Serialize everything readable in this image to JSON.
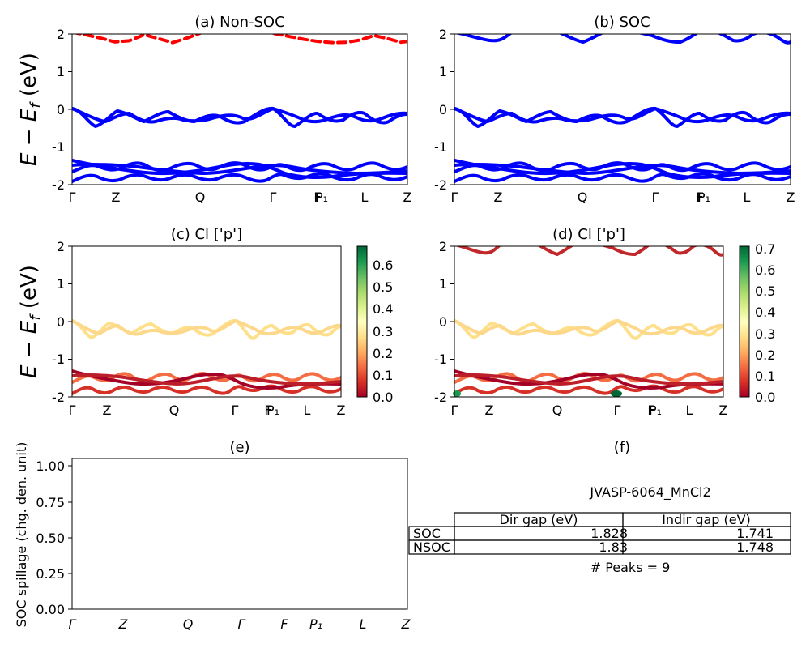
{
  "chart_data": [
    {
      "id": "a",
      "type": "line",
      "title": "(a) Non-SOC",
      "ylabel": "E − E_f (eV)",
      "ylim": [
        -2,
        2
      ],
      "yticks": [
        -2,
        -1,
        0,
        1,
        2
      ],
      "xticks": [
        "Γ",
        "Z",
        "Q",
        "Γ",
        "F",
        "P₁",
        "L",
        "Z"
      ],
      "series": [
        {
          "color": "#ff0000",
          "style": "dashed",
          "x": [
            0,
            0.045,
            0.09,
            0.128,
            0.17,
            0.215,
            0.26,
            0.3,
            0.345,
            0.39,
            0.43,
            0.47,
            0.53,
            0.57,
            0.61,
            0.65,
            0.69,
            0.735,
            0.78,
            0.82,
            0.86,
            0.9,
            0.94,
            0.98,
            1.0
          ],
          "y": [
            2.05,
            1.97,
            1.88,
            1.79,
            1.82,
            1.98,
            1.87,
            1.77,
            1.9,
            2.05,
            2.1,
            2.1,
            2.1,
            2.08,
            2.0,
            1.93,
            1.86,
            1.8,
            1.77,
            1.78,
            1.84,
            1.96,
            1.88,
            1.78,
            1.8
          ]
        }
      ]
    },
    {
      "id": "b",
      "type": "line",
      "title": "(b) SOC",
      "ylim": [
        -2,
        2
      ],
      "yticks": [
        -2,
        -1,
        0,
        1,
        2
      ],
      "xticks": [
        "Γ",
        "Z",
        "Q",
        "Γ",
        "F",
        "P₁",
        "L",
        "Z"
      ],
      "series": []
    },
    {
      "id": "c",
      "type": "scatter",
      "title": "(c)  Cl ['p']",
      "ylabel": "E − E_f (eV)",
      "ylim": [
        -2,
        2
      ],
      "yticks": [
        -2,
        -1,
        0,
        1,
        2
      ],
      "xticks": [
        "Γ",
        "Z",
        "Q",
        "Γ",
        "F",
        "P₁",
        "L",
        "Z"
      ],
      "colorbar": {
        "min": 0.0,
        "max": 0.68,
        "ticks": [
          "0.0",
          "0.1",
          "0.2",
          "0.3",
          "0.4",
          "0.5",
          "0.6"
        ],
        "cmap": "RdYlGn"
      }
    },
    {
      "id": "d",
      "type": "scatter",
      "title": "(d) Cl ['p']",
      "ylim": [
        -2,
        2
      ],
      "yticks": [
        -2,
        -1,
        0,
        1,
        2
      ],
      "xticks": [
        "Γ",
        "Z",
        "Q",
        "Γ",
        "F",
        "P₁",
        "L",
        "Z"
      ],
      "colorbar": {
        "min": 0.0,
        "max": 0.71,
        "ticks": [
          "0.0",
          "0.1",
          "0.2",
          "0.3",
          "0.4",
          "0.5",
          "0.6",
          "0.7"
        ],
        "cmap": "RdYlGn"
      }
    },
    {
      "id": "e",
      "type": "line",
      "title": "(e)",
      "ylabel": "SOC spillage (chg. den. unit)",
      "ylim": [
        0,
        1.05
      ],
      "yticks": [
        "0.00",
        "0.25",
        "0.50",
        "0.75",
        "1.00"
      ],
      "xticks": [
        "Γ",
        "Z",
        "Q",
        "Γ",
        "F",
        "P₁",
        "L",
        "Z"
      ],
      "series": []
    },
    {
      "id": "f",
      "type": "table",
      "title": "(f)",
      "subtitle": "JVASP-6064_MnCl2",
      "columns": [
        "Dir gap (eV)",
        "Indir gap (eV)"
      ],
      "rows": [
        {
          "label": "SOC",
          "values": [
            "1.828",
            "1.741"
          ]
        },
        {
          "label": "NSOC",
          "values": [
            "1.83",
            "1.748"
          ]
        }
      ],
      "footer": "# Peaks = 9"
    }
  ]
}
